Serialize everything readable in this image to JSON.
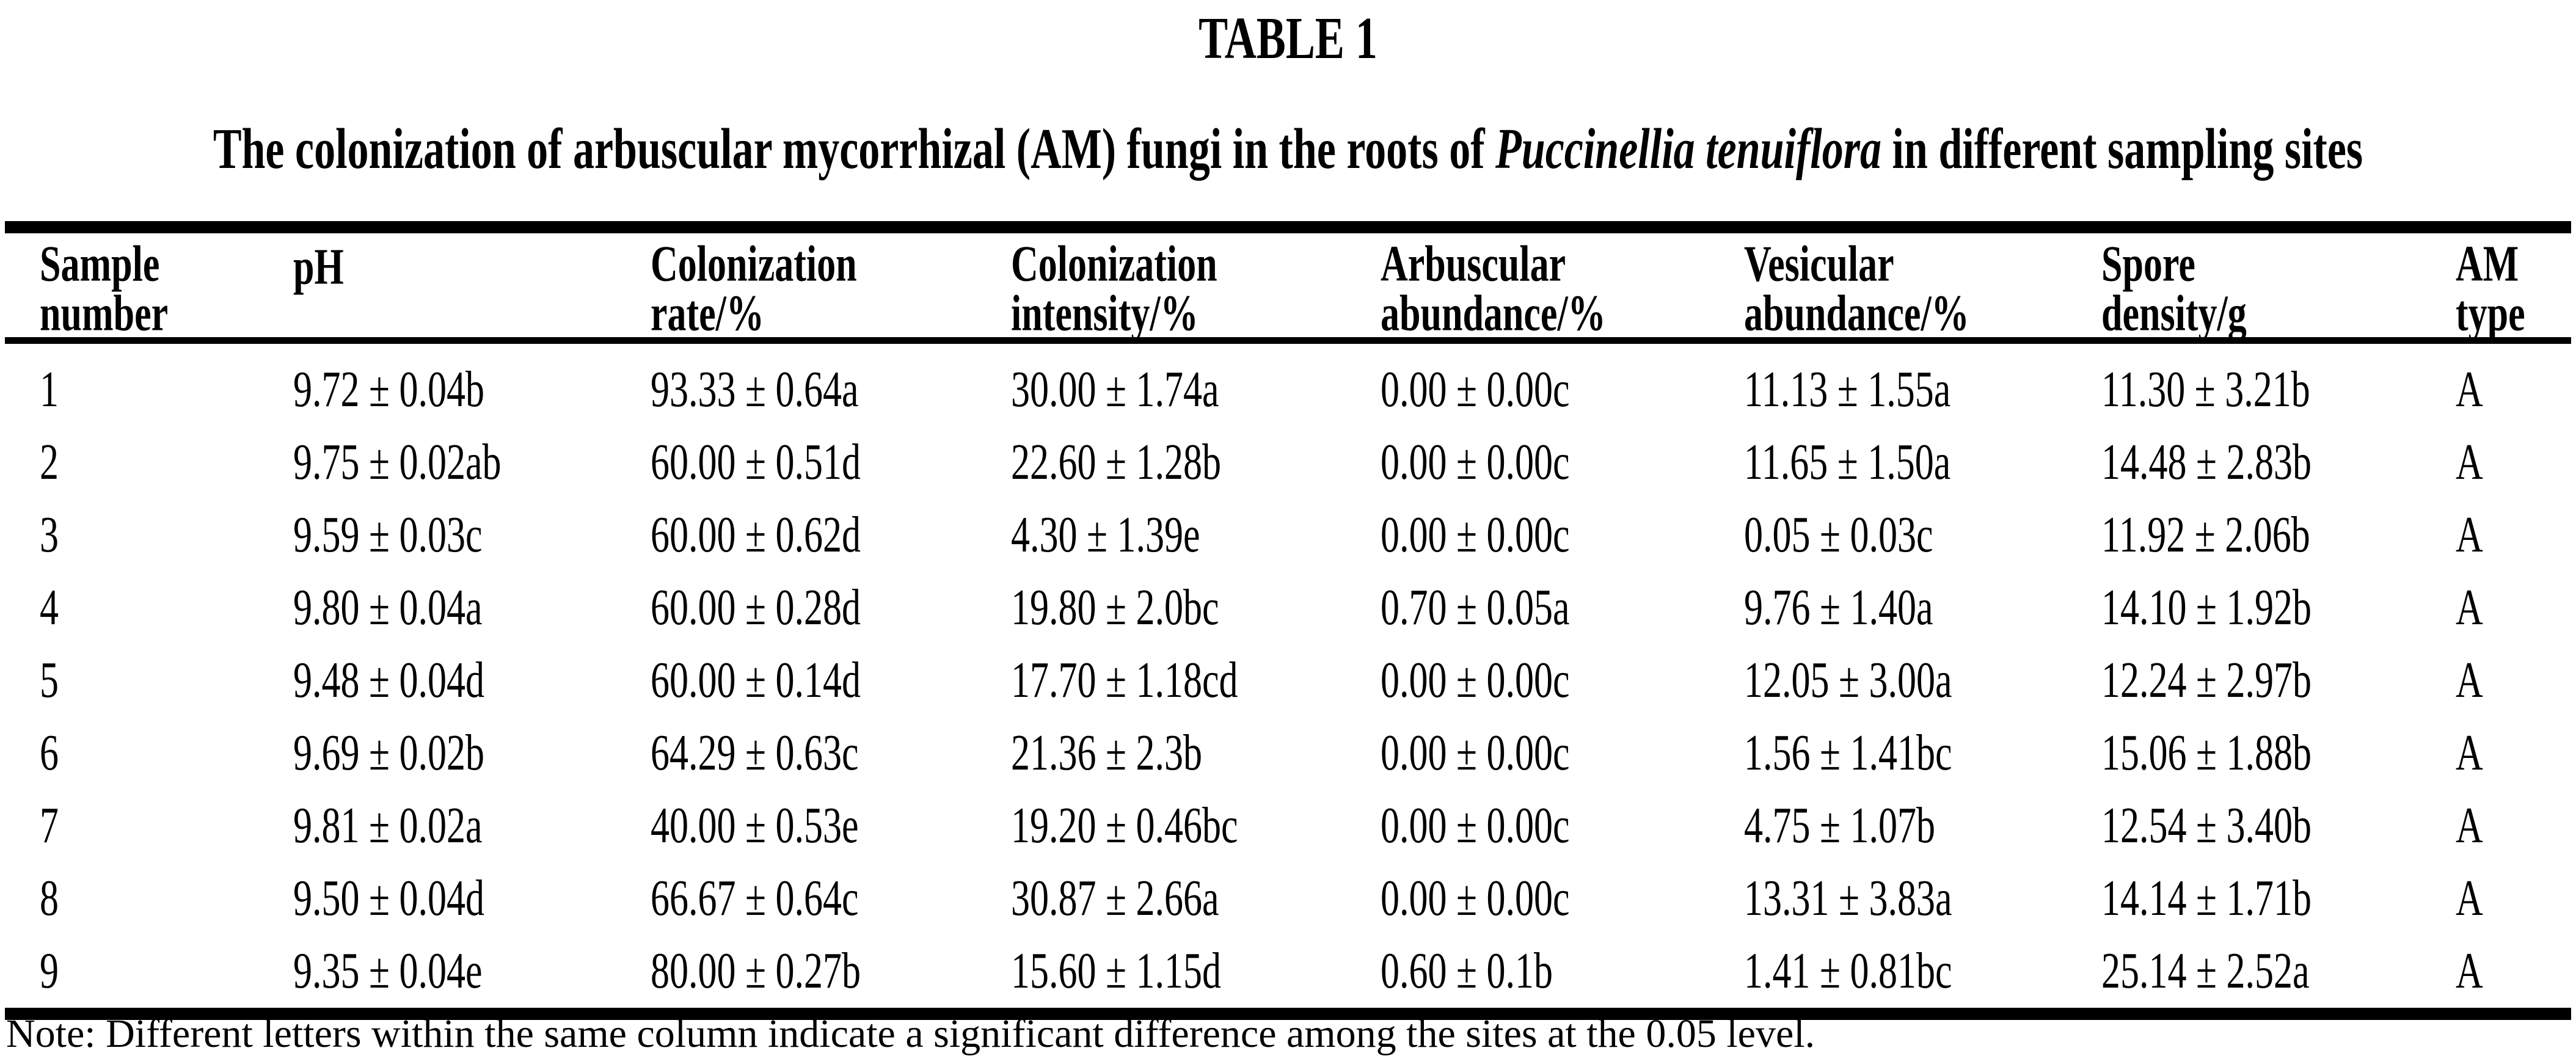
{
  "page": {
    "background_color": "#ffffff",
    "text_color": "#000000"
  },
  "table_label": "TABLE 1",
  "caption": {
    "prefix": "The colonization of arbuscular mycorrhizal (AM) fungi in the roots of ",
    "species_italic": "Puccinellia tenuiflora",
    "suffix": " in different sampling sites"
  },
  "headers": [
    {
      "line1": "Sample",
      "line2": "number"
    },
    {
      "line1": "pH",
      "line2": ""
    },
    {
      "line1": "Colonization",
      "line2": "rate/%"
    },
    {
      "line1": "Colonization",
      "line2": "intensity/%"
    },
    {
      "line1": "Arbuscular",
      "line2": "abundance/%"
    },
    {
      "line1": "Vesicular",
      "line2": "abundance/%"
    },
    {
      "line1": "Spore",
      "line2": "density/g"
    },
    {
      "line1": "AM",
      "line2": "type"
    }
  ],
  "rows": [
    [
      "1",
      "9.72 ± 0.04b",
      "93.33 ± 0.64a",
      "30.00 ± 1.74a",
      "0.00 ± 0.00c",
      "11.13 ± 1.55a",
      "11.30 ± 3.21b",
      "A"
    ],
    [
      "2",
      "9.75 ± 0.02ab",
      "60.00 ± 0.51d",
      "22.60 ± 1.28b",
      "0.00 ± 0.00c",
      "11.65 ± 1.50a",
      "14.48 ± 2.83b",
      "A"
    ],
    [
      "3",
      "9.59 ± 0.03c",
      "60.00 ± 0.62d",
      "4.30 ± 1.39e",
      "0.00 ± 0.00c",
      "0.05 ± 0.03c",
      "11.92 ± 2.06b",
      "A"
    ],
    [
      "4",
      "9.80 ± 0.04a",
      "60.00 ± 0.28d",
      "19.80 ± 2.0bc",
      "0.70 ± 0.05a",
      "9.76 ± 1.40a",
      "14.10 ± 1.92b",
      "A"
    ],
    [
      "5",
      "9.48 ± 0.04d",
      "60.00 ± 0.14d",
      "17.70 ± 1.18cd",
      "0.00 ± 0.00c",
      "12.05 ± 3.00a",
      "12.24 ± 2.97b",
      "A"
    ],
    [
      "6",
      "9.69 ± 0.02b",
      "64.29 ± 0.63c",
      "21.36 ± 2.3b",
      "0.00 ± 0.00c",
      "1.56 ± 1.41bc",
      "15.06 ± 1.88b",
      "A"
    ],
    [
      "7",
      "9.81 ± 0.02a",
      "40.00 ± 0.53e",
      "19.20 ± 0.46bc",
      "0.00 ± 0.00c",
      "4.75 ± 1.07b",
      "12.54 ± 3.40b",
      "A"
    ],
    [
      "8",
      "9.50 ± 0.04d",
      "66.67 ± 0.64c",
      "30.87 ± 2.66a",
      "0.00 ± 0.00c",
      "13.31 ± 3.83a",
      "14.14 ± 1.71b",
      "A"
    ],
    [
      "9",
      "9.35 ± 0.04e",
      "80.00 ± 0.27b",
      "15.60 ± 1.15d",
      "0.60 ± 0.1b",
      "1.41 ± 0.81bc",
      "25.14 ± 2.52a",
      "A"
    ]
  ],
  "column_keys": [
    "sample-number",
    "ph",
    "colonization-rate",
    "colonization-intensity",
    "arbuscular-abundance",
    "vesicular-abundance",
    "spore-density",
    "am-type"
  ],
  "note": "Note: Different letters within the same column indicate a significant difference among the sites at the 0.05 level."
}
